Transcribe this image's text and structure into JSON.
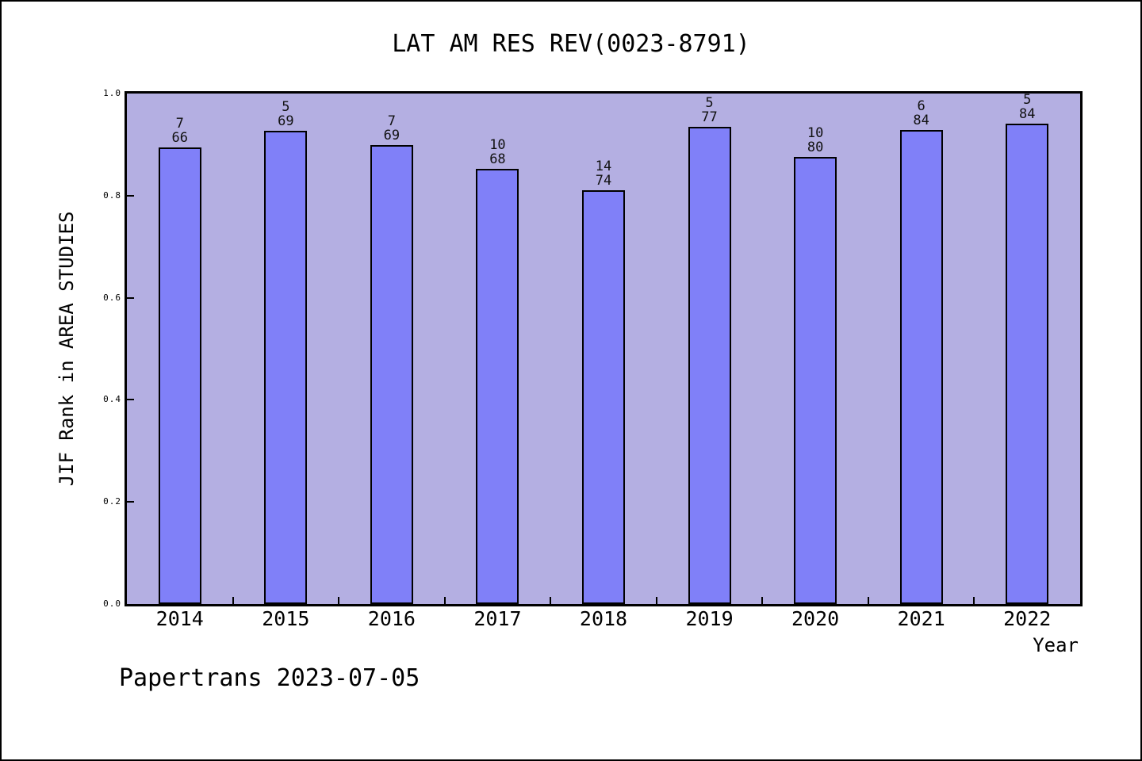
{
  "page": {
    "title": "LAT AM RES REV(0023-8791)",
    "footer": "Papertrans 2023-07-05"
  },
  "chart_data": {
    "type": "bar",
    "title": "LAT AM RES REV(0023-8791)",
    "xlabel": "Year",
    "ylabel": "JIF Rank in AREA STUDIES",
    "ylim": [
      0.0,
      1.0
    ],
    "ytick_labels": [
      "0.0",
      "0.2",
      "0.4",
      "0.6",
      "0.8",
      "1.0"
    ],
    "grid": false,
    "legend": "none",
    "categories": [
      "2014",
      "2015",
      "2016",
      "2017",
      "2018",
      "2019",
      "2020",
      "2021",
      "2022"
    ],
    "series": [
      {
        "name": "JIF Rank in AREA STUDIES",
        "note": "bar labels show rank over total; bar height = 1 - rank/total",
        "points": [
          {
            "year": "2014",
            "rank": 7,
            "total": 66,
            "value": 0.8939
          },
          {
            "year": "2015",
            "rank": 5,
            "total": 69,
            "value": 0.9275
          },
          {
            "year": "2016",
            "rank": 7,
            "total": 69,
            "value": 0.8986
          },
          {
            "year": "2017",
            "rank": 10,
            "total": 68,
            "value": 0.8529
          },
          {
            "year": "2018",
            "rank": 14,
            "total": 74,
            "value": 0.8108
          },
          {
            "year": "2019",
            "rank": 5,
            "total": 77,
            "value": 0.9351
          },
          {
            "year": "2020",
            "rank": 10,
            "total": 80,
            "value": 0.875
          },
          {
            "year": "2021",
            "rank": 6,
            "total": 84,
            "value": 0.9286
          },
          {
            "year": "2022",
            "rank": 5,
            "total": 84,
            "value": 0.9405
          }
        ]
      }
    ],
    "colors": {
      "bar_fill": "#8080f8",
      "bar_border": "#000000",
      "plot_bg": "#b4afe2",
      "text": "#000000",
      "page_bg": "#ffffff"
    }
  }
}
